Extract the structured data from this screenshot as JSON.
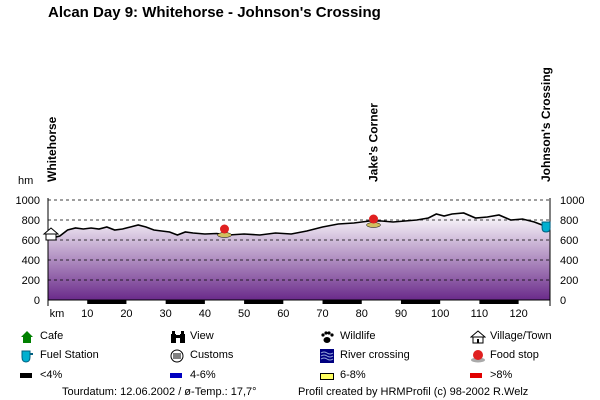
{
  "page": {
    "title": "Alcan Day 9: Whitehorse - Johnson's Crossing",
    "footer_left": "Tourdatum: 12.06.2002  /  ø-Temp.: 17,7°",
    "footer_right": "Profil created by HRMProfil (c) 98-2002 R.Welz"
  },
  "legend": [
    {
      "label": "Cafe",
      "icon": "cafe-house-icon",
      "color": "#008000"
    },
    {
      "label": "View",
      "icon": "binoculars-icon",
      "color": "#000000"
    },
    {
      "label": "Wildlife",
      "icon": "paw-icon",
      "color": "#000000"
    },
    {
      "label": "Village/Town",
      "icon": "village-icon",
      "color": "#000000"
    },
    {
      "label": "Fuel Station",
      "icon": "fuel-station-icon",
      "color": "#00a0c0"
    },
    {
      "label": "Customs",
      "icon": "customs-icon",
      "color": "#000000"
    },
    {
      "label": "River crossing",
      "icon": "river-crossing-icon",
      "color": "#000080"
    },
    {
      "label": "Food stop",
      "icon": "food-stop-icon",
      "color": "#e02020"
    },
    {
      "label": "<4%",
      "icon": "gradient-swatch-icon",
      "color": "#000000"
    },
    {
      "label": "4-6%",
      "icon": "gradient-swatch-icon",
      "color": "#0000c0"
    },
    {
      "label": "6-8%",
      "icon": "gradient-swatch-icon",
      "color": "#ffff60"
    },
    {
      "label": ">8%",
      "icon": "gradient-swatch-icon",
      "color": "#e00000"
    }
  ],
  "chart_data": {
    "type": "area",
    "title": "Alcan Day 9: Whitehorse - Johnson's Crossing",
    "ylabel": "hm",
    "xlabel": "km",
    "xlim": [
      0,
      128
    ],
    "ylim": [
      0,
      1000
    ],
    "y_ticks": [
      0,
      200,
      400,
      600,
      800,
      1000
    ],
    "x_ticks": [
      10,
      20,
      30,
      40,
      50,
      60,
      70,
      80,
      90,
      100,
      110,
      120
    ],
    "grid": "dashed horizontal",
    "colors": {
      "fill_top": "#ffffff",
      "fill_bottom": "#6a2a8a",
      "line": "#000000",
      "axis_band": "#000000"
    },
    "x": [
      0,
      1,
      3,
      5,
      7,
      9,
      11,
      13,
      15,
      17,
      19,
      21,
      23,
      25,
      27,
      29,
      31,
      33,
      35,
      37,
      40,
      43,
      46,
      50,
      54,
      58,
      62,
      66,
      70,
      74,
      78,
      82,
      85,
      88,
      91,
      94,
      97,
      99,
      101,
      103,
      106,
      109,
      112,
      115,
      118,
      121,
      124,
      126,
      128
    ],
    "y": [
      620,
      620,
      640,
      700,
      720,
      710,
      720,
      710,
      730,
      700,
      710,
      730,
      750,
      730,
      700,
      690,
      680,
      650,
      680,
      670,
      660,
      665,
      650,
      660,
      650,
      670,
      660,
      690,
      730,
      760,
      770,
      790,
      790,
      780,
      790,
      800,
      820,
      860,
      840,
      860,
      870,
      820,
      830,
      850,
      800,
      810,
      780,
      750,
      720
    ],
    "places": [
      {
        "name": "Whitehorse",
        "km": 0,
        "elevation": 650,
        "icon": "village-icon"
      },
      {
        "name": "Jake's Corner",
        "km": 83,
        "elevation": 800,
        "icon": "food-stop-icon"
      },
      {
        "name": "Johnson's Crossing",
        "km": 127,
        "elevation": 730,
        "icon": "fuel-station-icon"
      }
    ],
    "markers": [
      {
        "km": 45,
        "elevation": 660,
        "icon": "food-stop-icon"
      }
    ]
  }
}
